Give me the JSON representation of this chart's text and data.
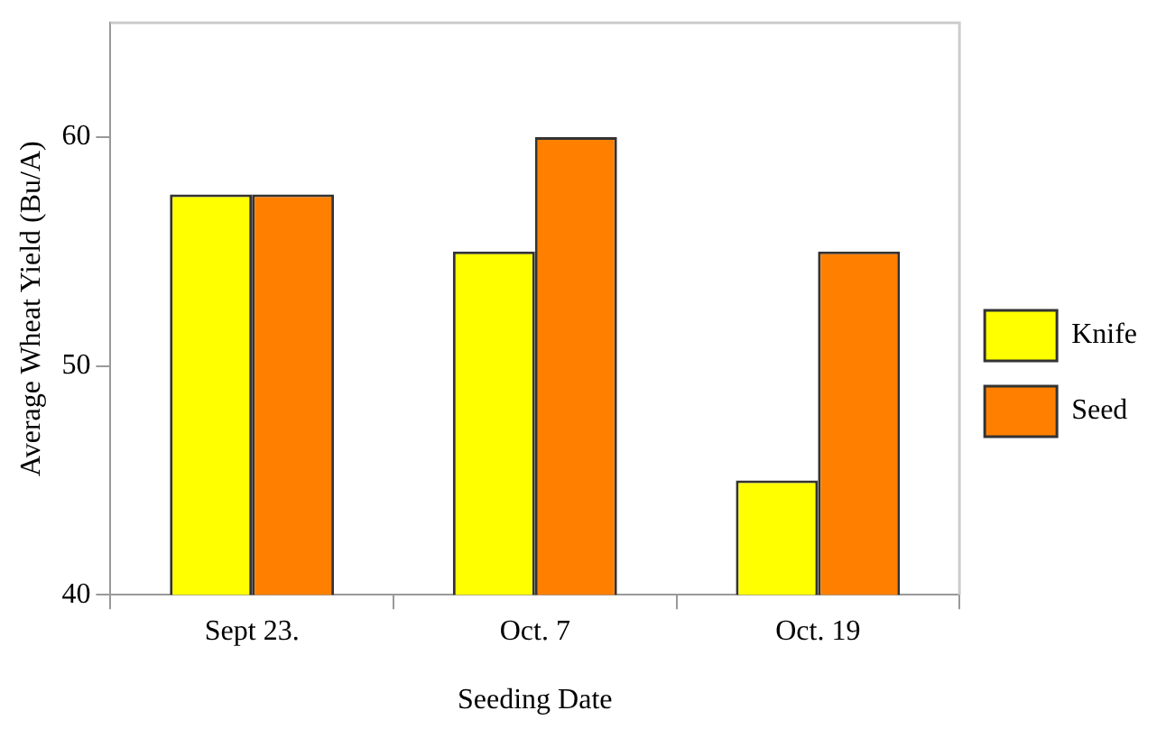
{
  "chart_data": {
    "type": "bar",
    "xlabel": "Seeding Date",
    "ylabel": "Average Wheat Yield (Bu/A)",
    "categories": [
      "Sept 23.",
      "Oct. 7",
      "Oct. 19"
    ],
    "series": [
      {
        "name": "Knife",
        "color": "#ffff00",
        "values": [
          57.5,
          55,
          45
        ]
      },
      {
        "name": "Seed",
        "color": "#ff8000",
        "values": [
          57.5,
          60,
          55
        ]
      }
    ],
    "ylim": [
      40,
      65
    ],
    "yticks": [
      40,
      50,
      60
    ],
    "grid": false,
    "legend": "right"
  }
}
